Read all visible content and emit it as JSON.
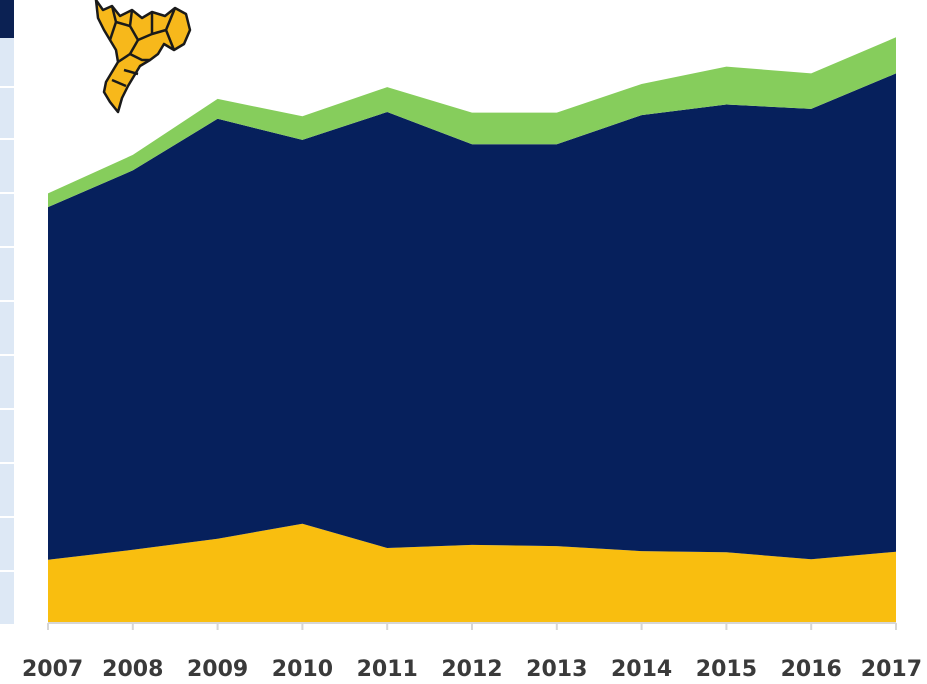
{
  "chart_data": {
    "type": "area",
    "stacked": true,
    "title": "",
    "xlabel": "",
    "ylabel": "",
    "x": [
      "2007",
      "2008",
      "2009",
      "2010",
      "2011",
      "2012",
      "2013",
      "2014",
      "2015",
      "2016",
      "2017"
    ],
    "ylim": [
      0,
      100
    ],
    "grid": false,
    "legend": "none",
    "series": [
      {
        "color": "#f9be0f",
        "values": [
          10.0,
          11.6,
          13.4,
          15.8,
          11.9,
          12.4,
          12.2,
          11.4,
          11.2,
          10.1,
          11.3
        ]
      },
      {
        "color": "#06205c",
        "values": [
          56.7,
          61.0,
          67.5,
          61.7,
          70.1,
          64.4,
          64.6,
          70.1,
          72.0,
          72.4,
          76.9
        ]
      },
      {
        "color": "#86cd5c",
        "values": [
          2.2,
          2.5,
          3.2,
          3.8,
          4.0,
          5.1,
          5.1,
          5.0,
          6.1,
          5.7,
          5.8
        ]
      }
    ],
    "decoration": "yellow-map-icon"
  }
}
